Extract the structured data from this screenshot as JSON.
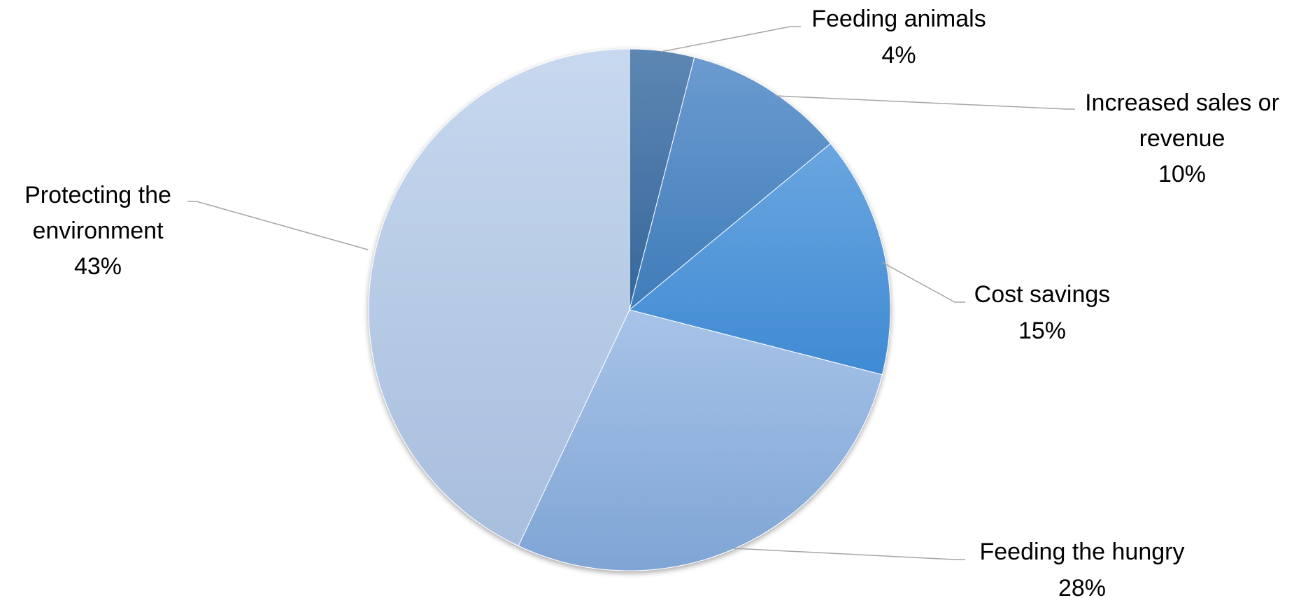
{
  "chart_data": {
    "type": "pie",
    "title": "",
    "start_angle_deg": 0,
    "direction": "clockwise",
    "slices": [
      {
        "label": "Feeding animals",
        "value": 4,
        "value_label": "4%",
        "color": "#4f7fb5"
      },
      {
        "label": "Increased sales or revenue",
        "value": 10,
        "value_label": "10%",
        "color": "#4a8ac8"
      },
      {
        "label": "Cost savings",
        "value": 15,
        "value_label": "15%",
        "color": "#4f98dd"
      },
      {
        "label": "Feeding the hungry",
        "value": 28,
        "value_label": "28%",
        "color": "#8eb2de"
      },
      {
        "label": "Protecting the environment",
        "value": 43,
        "value_label": "43%",
        "color": "#bccfe9"
      }
    ],
    "legend": "none",
    "leader_line_color": "#a6a6a6"
  }
}
